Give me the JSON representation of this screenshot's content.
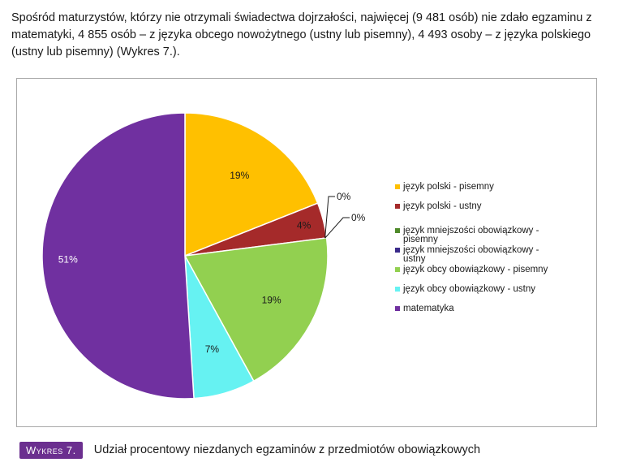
{
  "intro_text": "Spośród maturzystów, którzy nie otrzymali świadectwa dojrzałości, najwięcej (9 481 osób) nie zdało egzaminu z matematyki, 4 855 osób – z języka obcego nowożytnego (ustny lub pisemny), 4 493 osoby – z języka polskiego (ustny lub pisemny) (Wykres 7.).",
  "caption": {
    "label": "Wykres 7.",
    "text": "Udział procentowy niezdanych egzaminów z przedmiotów obowiązkowych"
  },
  "chart_data": {
    "type": "pie",
    "legend_position": "right",
    "slices": [
      {
        "name": "język polski - pisemny",
        "value": 19,
        "label": "19%",
        "color": "#ffc000"
      },
      {
        "name": "język polski - ustny",
        "value": 4,
        "label": "4%",
        "color": "#a52a2a"
      },
      {
        "name": "język mniejszości obowiązkowy - pisemny",
        "value": 0,
        "label": "0%",
        "color": "#4f8a2a"
      },
      {
        "name": "język mniejszości obowiązkowy - ustny",
        "value": 0,
        "label": "0%",
        "color": "#3a2a8a"
      },
      {
        "name": "język obcy obowiązkowy - pisemny",
        "value": 19,
        "label": "19%",
        "color": "#92d050"
      },
      {
        "name": "język obcy obowiązkowy - ustny",
        "value": 7,
        "label": "7%",
        "color": "#66f2f2"
      },
      {
        "name": "matematyka",
        "value": 51,
        "label": "51%",
        "color": "#7030a0"
      }
    ]
  }
}
